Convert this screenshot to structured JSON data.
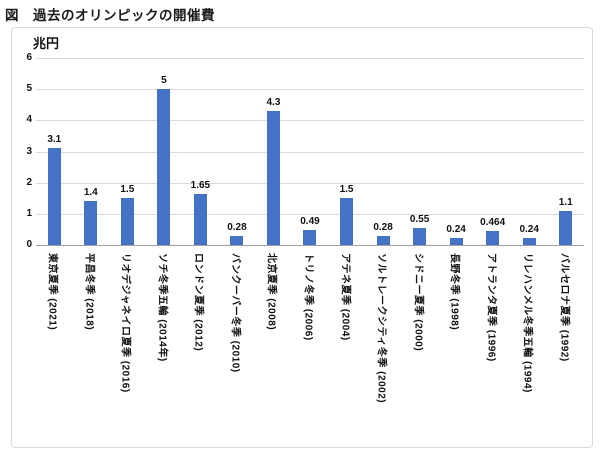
{
  "figure_title": "図　過去のオリンピックの開催費",
  "chart_data": {
    "type": "bar",
    "title": "図　過去のオリンピックの開催費",
    "axis_unit_label": "兆円",
    "xlabel": "",
    "ylabel": "兆円",
    "ylim": [
      0,
      6
    ],
    "yticks": [
      0,
      1,
      2,
      3,
      4,
      5,
      6
    ],
    "grid": "horizontal",
    "legend": "none",
    "bar_color": "#4472C4",
    "gridline_color": "#d9d9d9",
    "axis_line_color": "#9e9e9e",
    "categories": [
      "東京夏季 (2021)",
      "平昌冬季 (2018)",
      "リオデジャネイロ夏季 (2016)",
      "ソチ冬季五輪 (2014年)",
      "ロンドン夏季 (2012)",
      "バンクーバー冬季 (2010)",
      "北京夏季 (2008)",
      "トリノ冬季 (2006)",
      "アテネ夏季 (2004)",
      "ソルトレークシティ冬季 (2002)",
      "シドニー夏季 (2000)",
      "長野冬季 (1998)",
      "アトランタ夏季 (1996)",
      "リレハンメル冬季五輪 (1994)",
      "バルセロナ夏季 (1992)"
    ],
    "values": [
      3.1,
      1.4,
      1.5,
      5,
      1.65,
      0.28,
      4.3,
      0.49,
      1.5,
      0.28,
      0.55,
      0.24,
      0.464,
      0.24,
      1.1
    ],
    "value_labels": [
      "3.1",
      "1.4",
      "1.5",
      "5",
      "1.65",
      "0.28",
      "4.3",
      "0.49",
      "1.5",
      "0.28",
      "0.55",
      "0.24",
      "0.464",
      "0.24",
      "1.1"
    ]
  }
}
